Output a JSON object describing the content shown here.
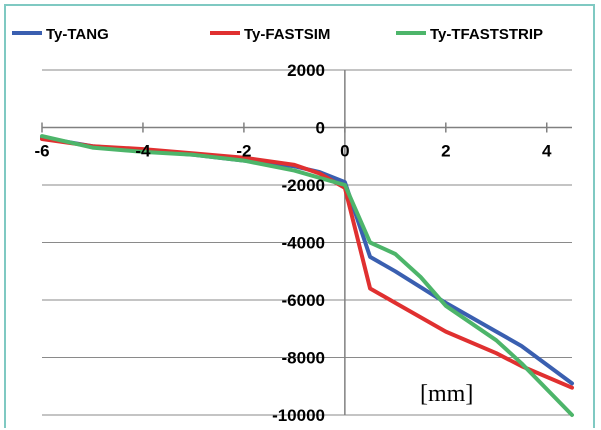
{
  "chart_data": {
    "type": "line",
    "title": "",
    "xlabel": "",
    "ylabel": "",
    "annotation": "[mm]",
    "xlim": [
      -6,
      4.5
    ],
    "ylim": [
      -10000,
      2000
    ],
    "x_ticks": [
      -6,
      -4,
      -2,
      0,
      2,
      4
    ],
    "y_ticks": [
      2000,
      0,
      -2000,
      -4000,
      -6000,
      -8000,
      -10000
    ],
    "grid": true,
    "legend_position": "top",
    "series": [
      {
        "name": "Ty-TANG",
        "color": "#3a5fb0",
        "points": [
          [
            -6,
            -350
          ],
          [
            -5,
            -650
          ],
          [
            -4,
            -800
          ],
          [
            -3,
            -950
          ],
          [
            -2,
            -1150
          ],
          [
            -1,
            -1350
          ],
          [
            -0.5,
            -1550
          ],
          [
            0,
            -1900
          ],
          [
            0.5,
            -4500
          ],
          [
            1,
            -5000
          ],
          [
            2,
            -6100
          ],
          [
            3,
            -7100
          ],
          [
            3.5,
            -7600
          ],
          [
            4.5,
            -8900
          ]
        ]
      },
      {
        "name": "Ty-FASTSIM",
        "color": "#e03030",
        "points": [
          [
            -6,
            -400
          ],
          [
            -5,
            -650
          ],
          [
            -4,
            -750
          ],
          [
            -3,
            -900
          ],
          [
            -2,
            -1050
          ],
          [
            -1,
            -1300
          ],
          [
            -0.5,
            -1600
          ],
          [
            0,
            -2100
          ],
          [
            0.5,
            -5600
          ],
          [
            1,
            -6100
          ],
          [
            2,
            -7100
          ],
          [
            3,
            -7850
          ],
          [
            3.5,
            -8300
          ],
          [
            4.5,
            -9050
          ]
        ]
      },
      {
        "name": "Ty-TFASTSTRIP",
        "color": "#4db56a",
        "points": [
          [
            -6,
            -300
          ],
          [
            -5,
            -700
          ],
          [
            -4,
            -850
          ],
          [
            -3,
            -950
          ],
          [
            -2,
            -1150
          ],
          [
            -1,
            -1500
          ],
          [
            -0.5,
            -1750
          ],
          [
            0,
            -2000
          ],
          [
            0.5,
            -4000
          ],
          [
            1,
            -4400
          ],
          [
            1.5,
            -5200
          ],
          [
            2,
            -6200
          ],
          [
            3,
            -7400
          ],
          [
            3.5,
            -8200
          ],
          [
            4.5,
            -10000
          ]
        ]
      }
    ]
  }
}
